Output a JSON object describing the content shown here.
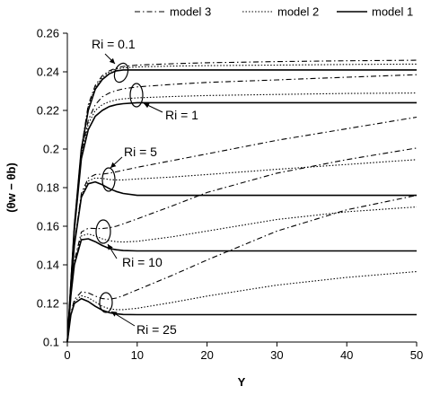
{
  "chart_data": {
    "type": "line",
    "xlabel": "Y",
    "ylabel": "(θw − θb)",
    "xlim": [
      0,
      50
    ],
    "ylim": [
      0.1,
      0.26
    ],
    "x_ticks": [
      "0",
      "10",
      "20",
      "30",
      "40",
      "50"
    ],
    "y_ticks": [
      "0.1",
      "0.12",
      "0.14",
      "0.16",
      "0.18",
      "0.2",
      "0.22",
      "0.24",
      "0.26"
    ],
    "grid": false,
    "legend_position": "top",
    "legend": [
      {
        "name": "model 3",
        "style": "dashdot"
      },
      {
        "name": "model 2",
        "style": "dotted"
      },
      {
        "name": "model 1",
        "style": "solid"
      }
    ],
    "annotations": [
      "Ri = 0.1",
      "Ri = 1",
      "Ri = 5",
      "Ri = 10",
      "Ri = 25"
    ],
    "series": [
      {
        "model": "model 1",
        "ri": "Ri = 0.1",
        "style": "solid",
        "x": [
          0,
          0.5,
          1,
          2,
          3,
          4,
          5,
          6,
          7,
          8,
          10,
          15,
          20,
          30,
          40,
          50
        ],
        "y": [
          0.1,
          0.13,
          0.16,
          0.2,
          0.22,
          0.231,
          0.236,
          0.239,
          0.2405,
          0.241,
          0.241,
          0.241,
          0.241,
          0.241,
          0.241,
          0.241
        ]
      },
      {
        "model": "model 2",
        "ri": "Ri = 0.1",
        "style": "dotted",
        "x": [
          0,
          0.5,
          1,
          2,
          3,
          4,
          5,
          6,
          7,
          8,
          10,
          15,
          20,
          30,
          40,
          50
        ],
        "y": [
          0.1,
          0.13,
          0.16,
          0.2,
          0.222,
          0.232,
          0.237,
          0.24,
          0.2415,
          0.242,
          0.2425,
          0.243,
          0.2432,
          0.2435,
          0.2438,
          0.244
        ]
      },
      {
        "model": "model 3",
        "ri": "Ri = 0.1",
        "style": "dashdot",
        "x": [
          0,
          0.5,
          1,
          2,
          3,
          4,
          5,
          6,
          7,
          8,
          10,
          15,
          20,
          30,
          40,
          50
        ],
        "y": [
          0.1,
          0.13,
          0.16,
          0.2,
          0.223,
          0.233,
          0.238,
          0.2405,
          0.242,
          0.2428,
          0.2435,
          0.2442,
          0.2447,
          0.2453,
          0.2457,
          0.246
        ]
      },
      {
        "model": "model 1",
        "ri": "Ri = 1",
        "style": "solid",
        "x": [
          0,
          0.5,
          1,
          2,
          3,
          4,
          5,
          6,
          7,
          8,
          10,
          15,
          20,
          30,
          40,
          50
        ],
        "y": [
          0.1,
          0.13,
          0.158,
          0.195,
          0.21,
          0.217,
          0.22,
          0.222,
          0.223,
          0.2235,
          0.224,
          0.224,
          0.224,
          0.224,
          0.224,
          0.224
        ]
      },
      {
        "model": "model 2",
        "ri": "Ri = 1",
        "style": "dotted",
        "x": [
          0,
          0.5,
          1,
          2,
          3,
          4,
          5,
          6,
          7,
          8,
          10,
          15,
          20,
          30,
          40,
          50
        ],
        "y": [
          0.1,
          0.13,
          0.158,
          0.197,
          0.213,
          0.22,
          0.223,
          0.2245,
          0.2255,
          0.226,
          0.2265,
          0.2272,
          0.2277,
          0.2283,
          0.2288,
          0.229
        ]
      },
      {
        "model": "model 3",
        "ri": "Ri = 1",
        "style": "dashdot",
        "x": [
          0,
          0.5,
          1,
          2,
          3,
          4,
          5,
          6,
          7,
          8,
          10,
          15,
          20,
          30,
          40,
          50
        ],
        "y": [
          0.1,
          0.13,
          0.159,
          0.198,
          0.215,
          0.223,
          0.227,
          0.229,
          0.2303,
          0.2312,
          0.2322,
          0.2335,
          0.2345,
          0.2358,
          0.2372,
          0.2385
        ]
      },
      {
        "model": "model 1",
        "ri": "Ri = 5",
        "style": "solid",
        "x": [
          0,
          0.5,
          1,
          2,
          3,
          4,
          5,
          6,
          7,
          8,
          10,
          15,
          20,
          30,
          40,
          50
        ],
        "y": [
          0.1,
          0.127,
          0.15,
          0.175,
          0.182,
          0.183,
          0.1815,
          0.1795,
          0.178,
          0.177,
          0.176,
          0.176,
          0.176,
          0.176,
          0.176,
          0.176
        ]
      },
      {
        "model": "model 2",
        "ri": "Ri = 5",
        "style": "dotted",
        "x": [
          0,
          0.5,
          1,
          2,
          3,
          4,
          5,
          6,
          7,
          8,
          10,
          15,
          20,
          30,
          40,
          50
        ],
        "y": [
          0.1,
          0.127,
          0.15,
          0.176,
          0.1835,
          0.185,
          0.1848,
          0.1842,
          0.184,
          0.184,
          0.1845,
          0.1855,
          0.1868,
          0.1895,
          0.192,
          0.1945
        ]
      },
      {
        "model": "model 3",
        "ri": "Ri = 5",
        "style": "dashdot",
        "x": [
          0,
          0.5,
          1,
          2,
          3,
          4,
          5,
          6,
          7,
          8,
          10,
          15,
          20,
          30,
          40,
          50
        ],
        "y": [
          0.1,
          0.128,
          0.151,
          0.177,
          0.185,
          0.1868,
          0.187,
          0.1875,
          0.1882,
          0.189,
          0.1905,
          0.194,
          0.1975,
          0.2045,
          0.2105,
          0.2165
        ]
      },
      {
        "model": "model 1",
        "ri": "Ri = 10",
        "style": "solid",
        "x": [
          0,
          0.5,
          1,
          2,
          3,
          4,
          5,
          6,
          7,
          8,
          10,
          15,
          20,
          30,
          40,
          50
        ],
        "y": [
          0.1,
          0.124,
          0.14,
          0.153,
          0.1535,
          0.152,
          0.15,
          0.1485,
          0.1478,
          0.1474,
          0.1472,
          0.1472,
          0.1472,
          0.1472,
          0.1472,
          0.1472
        ]
      },
      {
        "model": "model 2",
        "ri": "Ri = 10",
        "style": "dotted",
        "x": [
          0,
          0.5,
          1,
          2,
          3,
          4,
          5,
          6,
          7,
          8,
          10,
          15,
          20,
          30,
          40,
          50
        ],
        "y": [
          0.1,
          0.124,
          0.141,
          0.155,
          0.156,
          0.155,
          0.1535,
          0.1525,
          0.152,
          0.1518,
          0.1522,
          0.1545,
          0.1575,
          0.1635,
          0.1675,
          0.17
        ]
      },
      {
        "model": "model 3",
        "ri": "Ri = 10",
        "style": "dashdot",
        "x": [
          0,
          0.5,
          1,
          2,
          3,
          4,
          5,
          6,
          7,
          8,
          10,
          15,
          20,
          30,
          40,
          50
        ],
        "y": [
          0.1,
          0.125,
          0.142,
          0.157,
          0.159,
          0.1588,
          0.1588,
          0.1592,
          0.16,
          0.1612,
          0.1638,
          0.1705,
          0.1775,
          0.1875,
          0.1945,
          0.2005
        ]
      },
      {
        "model": "model 1",
        "ri": "Ri = 25",
        "style": "solid",
        "x": [
          0,
          0.5,
          1,
          2,
          3,
          4,
          5,
          6,
          7,
          8,
          10,
          15,
          20,
          30,
          40,
          50
        ],
        "y": [
          0.1,
          0.114,
          0.12,
          0.1225,
          0.121,
          0.1185,
          0.1165,
          0.1152,
          0.1146,
          0.1143,
          0.1142,
          0.1142,
          0.1142,
          0.1142,
          0.1142,
          0.1142
        ]
      },
      {
        "model": "model 2",
        "ri": "Ri = 25",
        "style": "dotted",
        "x": [
          0,
          0.5,
          1,
          2,
          3,
          4,
          5,
          6,
          7,
          8,
          10,
          15,
          20,
          30,
          40,
          50
        ],
        "y": [
          0.1,
          0.114,
          0.121,
          0.124,
          0.123,
          0.1208,
          0.1185,
          0.1172,
          0.1168,
          0.1168,
          0.1175,
          0.1205,
          0.1238,
          0.1295,
          0.1335,
          0.1365
        ]
      },
      {
        "model": "model 3",
        "ri": "Ri = 25",
        "style": "dashdot",
        "x": [
          0,
          0.5,
          1,
          2,
          3,
          4,
          5,
          6,
          7,
          8,
          10,
          15,
          20,
          30,
          40,
          50
        ],
        "y": [
          0.1,
          0.115,
          0.122,
          0.126,
          0.1255,
          0.1238,
          0.1225,
          0.1222,
          0.1228,
          0.124,
          0.127,
          0.1345,
          0.1425,
          0.1575,
          0.1685,
          0.176
        ]
      }
    ]
  }
}
